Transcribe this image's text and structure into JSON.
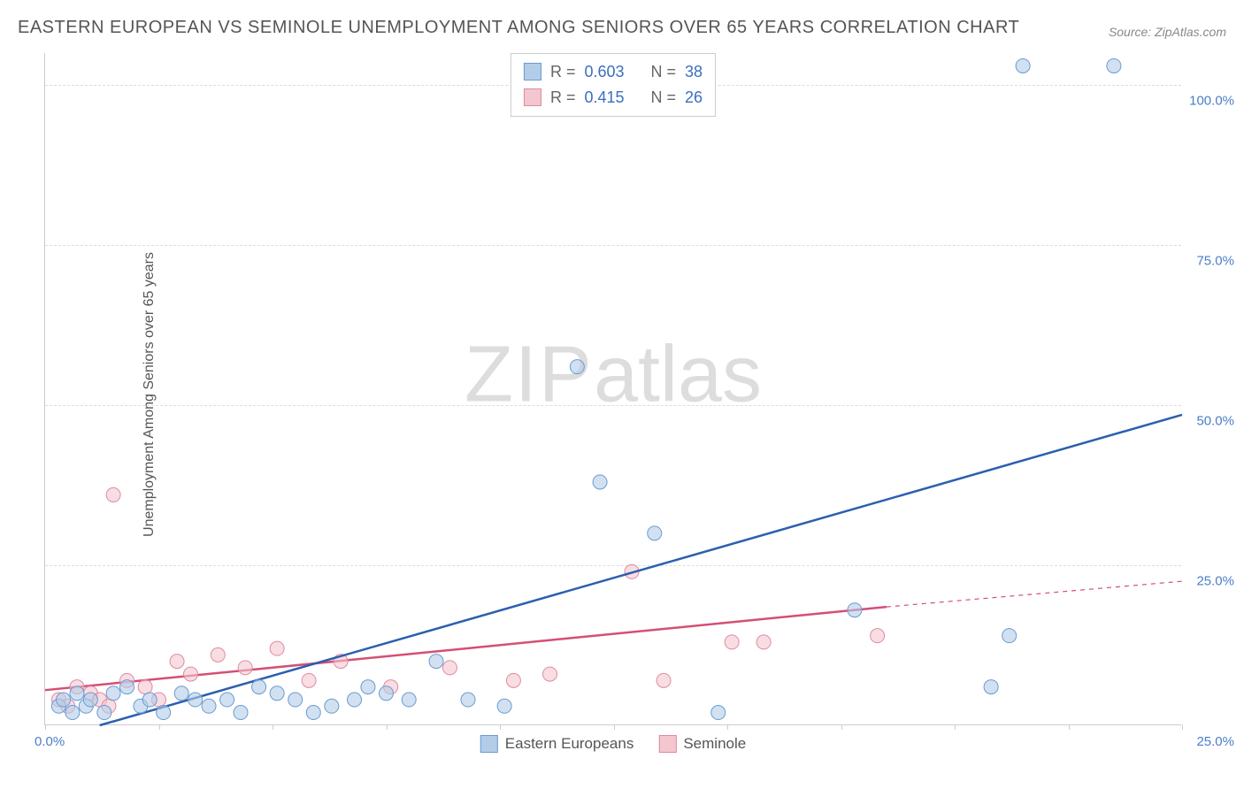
{
  "title": "EASTERN EUROPEAN VS SEMINOLE UNEMPLOYMENT AMONG SENIORS OVER 65 YEARS CORRELATION CHART",
  "source_label": "Source: ZipAtlas.com",
  "y_axis_label": "Unemployment Among Seniors over 65 years",
  "watermark_zip": "ZIP",
  "watermark_atlas": "atlas",
  "chart": {
    "type": "scatter",
    "xlim": [
      0,
      25
    ],
    "ylim": [
      0,
      105
    ],
    "x_tick_positions": [
      0,
      2.5,
      5,
      7.5,
      10,
      12.5,
      15,
      17.5,
      20,
      22.5,
      25
    ],
    "x_tick_labels_shown": {
      "0": "0.0%",
      "25": "25.0%"
    },
    "y_tick_positions": [
      25,
      50,
      75,
      100
    ],
    "y_tick_labels": [
      "25.0%",
      "50.0%",
      "75.0%",
      "100.0%"
    ],
    "grid_color": "#dddddd",
    "background_color": "#ffffff",
    "series": [
      {
        "name": "Eastern Europeans",
        "color_fill": "#b3cde8",
        "color_stroke": "#6a9bd1",
        "marker_radius": 8,
        "fill_opacity": 0.6,
        "R": "0.603",
        "N": "38",
        "trend": {
          "x1": 1.2,
          "y1": 0,
          "x2": 25,
          "y2": 48.5,
          "color": "#2b5fb0",
          "width": 2.5
        },
        "points": [
          {
            "x": 0.3,
            "y": 3
          },
          {
            "x": 0.4,
            "y": 4
          },
          {
            "x": 0.6,
            "y": 2
          },
          {
            "x": 0.7,
            "y": 5
          },
          {
            "x": 0.9,
            "y": 3
          },
          {
            "x": 1.0,
            "y": 4
          },
          {
            "x": 1.3,
            "y": 2
          },
          {
            "x": 1.5,
            "y": 5
          },
          {
            "x": 1.8,
            "y": 6
          },
          {
            "x": 2.1,
            "y": 3
          },
          {
            "x": 2.3,
            "y": 4
          },
          {
            "x": 2.6,
            "y": 2
          },
          {
            "x": 3.0,
            "y": 5
          },
          {
            "x": 3.3,
            "y": 4
          },
          {
            "x": 3.6,
            "y": 3
          },
          {
            "x": 4.0,
            "y": 4
          },
          {
            "x": 4.3,
            "y": 2
          },
          {
            "x": 4.7,
            "y": 6
          },
          {
            "x": 5.1,
            "y": 5
          },
          {
            "x": 5.5,
            "y": 4
          },
          {
            "x": 5.9,
            "y": 2
          },
          {
            "x": 6.3,
            "y": 3
          },
          {
            "x": 6.8,
            "y": 4
          },
          {
            "x": 7.1,
            "y": 6
          },
          {
            "x": 7.5,
            "y": 5
          },
          {
            "x": 8.0,
            "y": 4
          },
          {
            "x": 8.6,
            "y": 10
          },
          {
            "x": 9.3,
            "y": 4
          },
          {
            "x": 10.1,
            "y": 3
          },
          {
            "x": 11.7,
            "y": 56
          },
          {
            "x": 12.2,
            "y": 38
          },
          {
            "x": 13.4,
            "y": 30
          },
          {
            "x": 14.8,
            "y": 2
          },
          {
            "x": 17.8,
            "y": 18
          },
          {
            "x": 20.8,
            "y": 6
          },
          {
            "x": 21.2,
            "y": 14
          },
          {
            "x": 21.5,
            "y": 103
          },
          {
            "x": 23.5,
            "y": 103
          }
        ]
      },
      {
        "name": "Seminole",
        "color_fill": "#f4c6d0",
        "color_stroke": "#e08aa0",
        "marker_radius": 8,
        "fill_opacity": 0.6,
        "R": "0.415",
        "N": "26",
        "trend": {
          "x1": 0,
          "y1": 5.5,
          "x2": 18.5,
          "y2": 18.5,
          "color": "#d44f74",
          "width": 2.5,
          "dash_extend_to": 25,
          "dash_y": 22.5
        },
        "points": [
          {
            "x": 0.3,
            "y": 4
          },
          {
            "x": 0.5,
            "y": 3
          },
          {
            "x": 0.7,
            "y": 6
          },
          {
            "x": 1.0,
            "y": 5
          },
          {
            "x": 1.2,
            "y": 4
          },
          {
            "x": 1.4,
            "y": 3
          },
          {
            "x": 1.5,
            "y": 36
          },
          {
            "x": 1.8,
            "y": 7
          },
          {
            "x": 2.2,
            "y": 6
          },
          {
            "x": 2.5,
            "y": 4
          },
          {
            "x": 2.9,
            "y": 10
          },
          {
            "x": 3.2,
            "y": 8
          },
          {
            "x": 3.8,
            "y": 11
          },
          {
            "x": 4.4,
            "y": 9
          },
          {
            "x": 5.1,
            "y": 12
          },
          {
            "x": 5.8,
            "y": 7
          },
          {
            "x": 6.5,
            "y": 10
          },
          {
            "x": 7.6,
            "y": 6
          },
          {
            "x": 8.9,
            "y": 9
          },
          {
            "x": 10.3,
            "y": 7
          },
          {
            "x": 11.1,
            "y": 8
          },
          {
            "x": 12.9,
            "y": 24
          },
          {
            "x": 13.6,
            "y": 7
          },
          {
            "x": 15.1,
            "y": 13
          },
          {
            "x": 15.8,
            "y": 13
          },
          {
            "x": 18.3,
            "y": 14
          }
        ]
      }
    ]
  },
  "legend_stats": {
    "r_prefix": "R = ",
    "n_prefix": "N = "
  },
  "bottom_legend": {
    "item1": "Eastern Europeans",
    "item2": "Seminole"
  }
}
